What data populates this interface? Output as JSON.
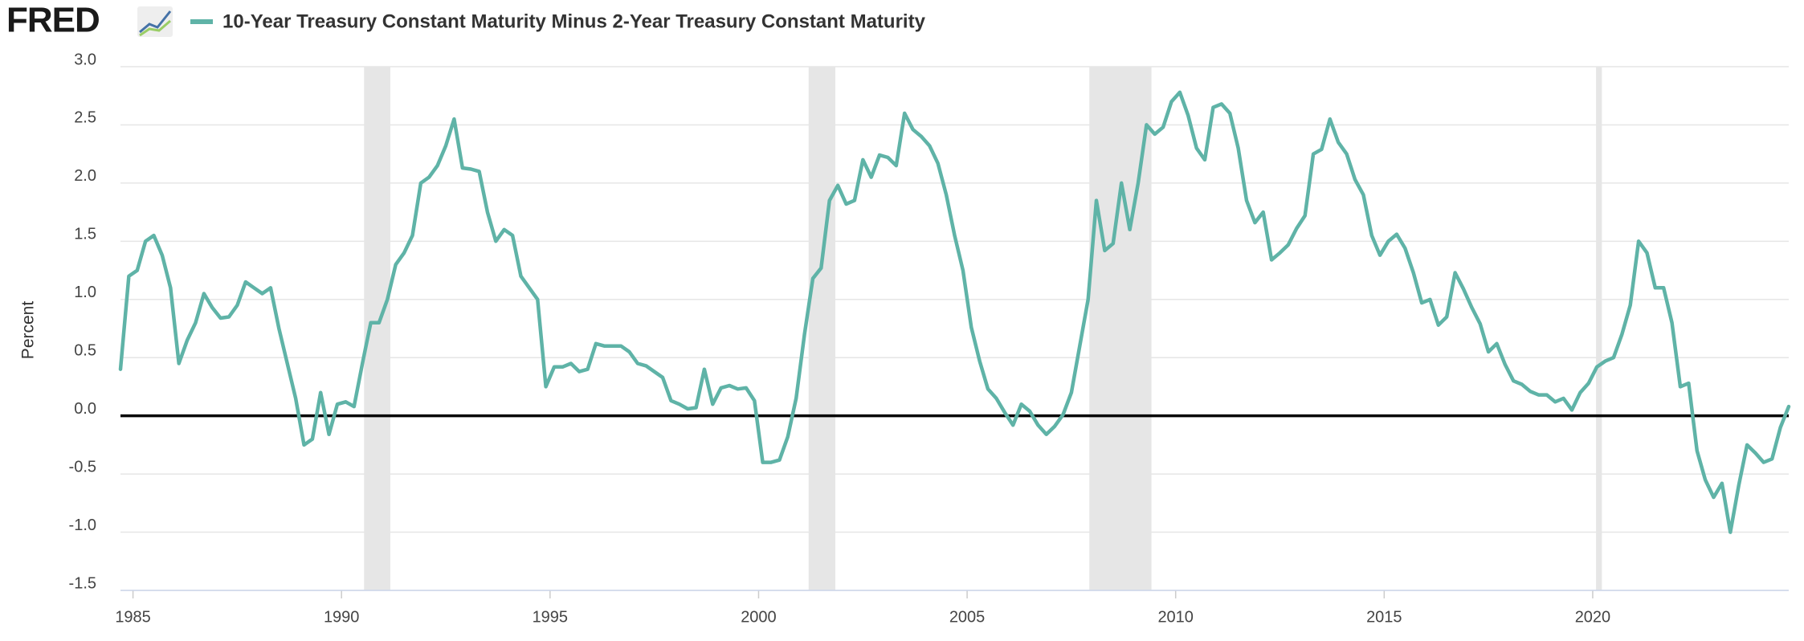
{
  "brand": "FRED",
  "chart_data": {
    "type": "line",
    "y_label": "Percent",
    "series": [
      {
        "name": "10-Year Treasury Constant Maturity Minus 2-Year Treasury Constant Maturity",
        "color": "#5fb3a7",
        "values": [
          0.4,
          1.2,
          1.25,
          1.5,
          1.55,
          1.38,
          1.1,
          0.45,
          0.65,
          0.8,
          1.05,
          0.93,
          0.84,
          0.85,
          0.95,
          1.15,
          1.1,
          1.05,
          1.1,
          0.75,
          0.45,
          0.15,
          -0.25,
          -0.2,
          0.2,
          -0.16,
          0.1,
          0.12,
          0.08,
          0.45,
          0.8,
          0.8,
          1.0,
          1.3,
          1.4,
          1.55,
          2.0,
          2.05,
          2.15,
          2.32,
          2.55,
          2.13,
          2.12,
          2.1,
          1.75,
          1.5,
          1.6,
          1.55,
          1.2,
          1.1,
          1.0,
          0.25,
          0.42,
          0.42,
          0.45,
          0.38,
          0.4,
          0.62,
          0.6,
          0.6,
          0.6,
          0.55,
          0.45,
          0.43,
          0.38,
          0.33,
          0.13,
          0.1,
          0.06,
          0.07,
          0.4,
          0.1,
          0.24,
          0.26,
          0.23,
          0.24,
          0.13,
          -0.4,
          -0.4,
          -0.38,
          -0.18,
          0.15,
          0.7,
          1.18,
          1.27,
          1.85,
          1.98,
          1.82,
          1.85,
          2.2,
          2.05,
          2.24,
          2.22,
          2.15,
          2.6,
          2.46,
          2.4,
          2.32,
          2.17,
          1.9,
          1.55,
          1.25,
          0.76,
          0.47,
          0.23,
          0.15,
          0.03,
          -0.08,
          0.1,
          0.04,
          -0.08,
          -0.16,
          -0.09,
          0.01,
          0.2,
          0.6,
          1.0,
          1.85,
          1.42,
          1.48,
          2.0,
          1.6,
          2.0,
          2.5,
          2.42,
          2.48,
          2.7,
          2.78,
          2.58,
          2.3,
          2.2,
          2.65,
          2.68,
          2.6,
          2.3,
          1.85,
          1.66,
          1.75,
          1.34,
          1.4,
          1.47,
          1.61,
          1.72,
          2.25,
          2.29,
          2.55,
          2.35,
          2.25,
          2.03,
          1.9,
          1.55,
          1.38,
          1.5,
          1.56,
          1.44,
          1.23,
          0.97,
          1.0,
          0.78,
          0.85,
          1.23,
          1.09,
          0.93,
          0.79,
          0.55,
          0.62,
          0.44,
          0.3,
          0.27,
          0.21,
          0.18,
          0.18,
          0.12,
          0.15,
          0.05,
          0.2,
          0.28,
          0.42,
          0.47,
          0.5,
          0.7,
          0.95,
          1.5,
          1.4,
          1.1,
          1.1,
          0.8,
          0.25,
          0.28,
          -0.3,
          -0.55,
          -0.7,
          -0.58,
          -1.0,
          -0.6,
          -0.25,
          -0.32,
          -0.4,
          -0.37,
          -0.1,
          0.08
        ]
      }
    ],
    "x": [
      1984.7,
      1984.9,
      1985.1,
      1985.3,
      1985.5,
      1985.7,
      1985.9,
      1986.1,
      1986.3,
      1986.5,
      1986.7,
      1986.9,
      1987.1,
      1987.3,
      1987.5,
      1987.7,
      1987.9,
      1988.1,
      1988.3,
      1988.5,
      1988.7,
      1988.9,
      1989.1,
      1989.3,
      1989.5,
      1989.7,
      1989.9,
      1990.1,
      1990.3,
      1990.5,
      1990.7,
      1990.9,
      1991.1,
      1991.3,
      1991.5,
      1991.7,
      1991.9,
      1992.1,
      1992.3,
      1992.5,
      1992.7,
      1992.9,
      1993.1,
      1993.3,
      1993.5,
      1993.7,
      1993.9,
      1994.1,
      1994.3,
      1994.5,
      1994.7,
      1994.9,
      1995.1,
      1995.3,
      1995.5,
      1995.7,
      1995.9,
      1996.1,
      1996.3,
      1996.5,
      1996.7,
      1996.9,
      1997.1,
      1997.3,
      1997.5,
      1997.7,
      1997.9,
      1998.1,
      1998.3,
      1998.5,
      1998.7,
      1998.9,
      1999.1,
      1999.3,
      1999.5,
      1999.7,
      1999.9,
      2000.1,
      2000.3,
      2000.5,
      2000.7,
      2000.9,
      2001.1,
      2001.3,
      2001.5,
      2001.7,
      2001.9,
      2002.1,
      2002.3,
      2002.5,
      2002.7,
      2002.9,
      2003.1,
      2003.3,
      2003.5,
      2003.7,
      2003.9,
      2004.1,
      2004.3,
      2004.5,
      2004.7,
      2004.9,
      2005.1,
      2005.3,
      2005.5,
      2005.7,
      2005.9,
      2006.1,
      2006.3,
      2006.5,
      2006.7,
      2006.9,
      2007.1,
      2007.3,
      2007.5,
      2007.7,
      2007.9,
      2008.1,
      2008.3,
      2008.5,
      2008.7,
      2008.9,
      2009.1,
      2009.3,
      2009.5,
      2009.7,
      2009.9,
      2010.1,
      2010.3,
      2010.5,
      2010.7,
      2010.9,
      2011.1,
      2011.3,
      2011.5,
      2011.7,
      2011.9,
      2012.1,
      2012.3,
      2012.5,
      2012.7,
      2012.9,
      2013.1,
      2013.3,
      2013.5,
      2013.7,
      2013.9,
      2014.1,
      2014.3,
      2014.5,
      2014.7,
      2014.9,
      2015.1,
      2015.3,
      2015.5,
      2015.7,
      2015.9,
      2016.1,
      2016.3,
      2016.5,
      2016.7,
      2016.9,
      2017.1,
      2017.3,
      2017.5,
      2017.7,
      2017.9,
      2018.1,
      2018.3,
      2018.5,
      2018.7,
      2018.9,
      2019.1,
      2019.3,
      2019.5,
      2019.7,
      2019.9,
      2020.1,
      2020.3,
      2020.5,
      2020.7,
      2020.9,
      2021.1,
      2021.3,
      2021.5,
      2021.7,
      2021.9,
      2022.1,
      2022.3,
      2022.5,
      2022.7,
      2022.9,
      2023.1,
      2023.3,
      2023.5,
      2023.7,
      2023.9,
      2024.1,
      2024.3,
      2024.5,
      2024.7
    ],
    "recessions": [
      [
        1990.54,
        1991.17
      ],
      [
        2001.2,
        2001.84
      ],
      [
        2007.93,
        2009.42
      ],
      [
        2020.08,
        2020.22
      ]
    ],
    "recession_color": "#e6e6e6",
    "xlim": [
      1984.7,
      2024.7
    ],
    "xticks": [
      1985,
      1990,
      1995,
      2000,
      2005,
      2010,
      2015,
      2020
    ],
    "ylim": [
      -1.5,
      3.0
    ],
    "yticks": [
      {
        "value": 3,
        "label": "3.0"
      },
      2.5,
      {
        "value": 2,
        "label": "2.0"
      },
      1.5,
      {
        "value": 1,
        "label": "1.0"
      },
      0.5,
      {
        "value": 0,
        "label": "0.0"
      },
      -0.5,
      {
        "value": -1,
        "label": "-1.0"
      },
      -1.5
    ],
    "grid": true
  }
}
